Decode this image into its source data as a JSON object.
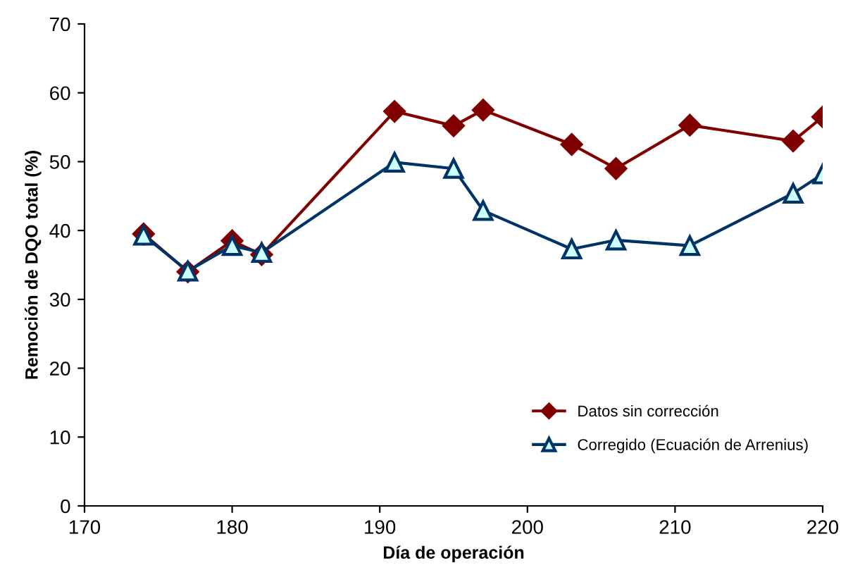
{
  "chart_data": {
    "type": "line",
    "xlabel": "Día de operación",
    "ylabel": "Remoción de DQO total (%)",
    "xlim": [
      170,
      220
    ],
    "xticks": [
      170,
      180,
      190,
      200,
      210,
      220
    ],
    "ylim": [
      0,
      70
    ],
    "yticks": [
      0,
      10,
      20,
      30,
      40,
      50,
      60,
      70
    ],
    "grid": false,
    "legend": "bottom right",
    "series": [
      {
        "name": "Datos sin corrección",
        "color": "#800000",
        "marker": "diamond",
        "x": [
          174,
          177,
          180,
          182,
          191,
          195,
          197,
          203,
          206,
          211,
          218,
          220
        ],
        "values": [
          39.5,
          34,
          38.5,
          36.5,
          57.3,
          55.2,
          57.5,
          52.5,
          49,
          55.3,
          53,
          56.5
        ]
      },
      {
        "name": "Corregido (Ecuación de Arrenius)",
        "color": "#003366",
        "marker": "triangle",
        "x": [
          174,
          177,
          180,
          182,
          191,
          195,
          197,
          203,
          206,
          211,
          218,
          220
        ],
        "values": [
          39.3,
          34.1,
          37.8,
          36.8,
          49.9,
          49,
          42.9,
          37.3,
          38.6,
          37.8,
          45.4,
          48.2
        ]
      }
    ]
  }
}
